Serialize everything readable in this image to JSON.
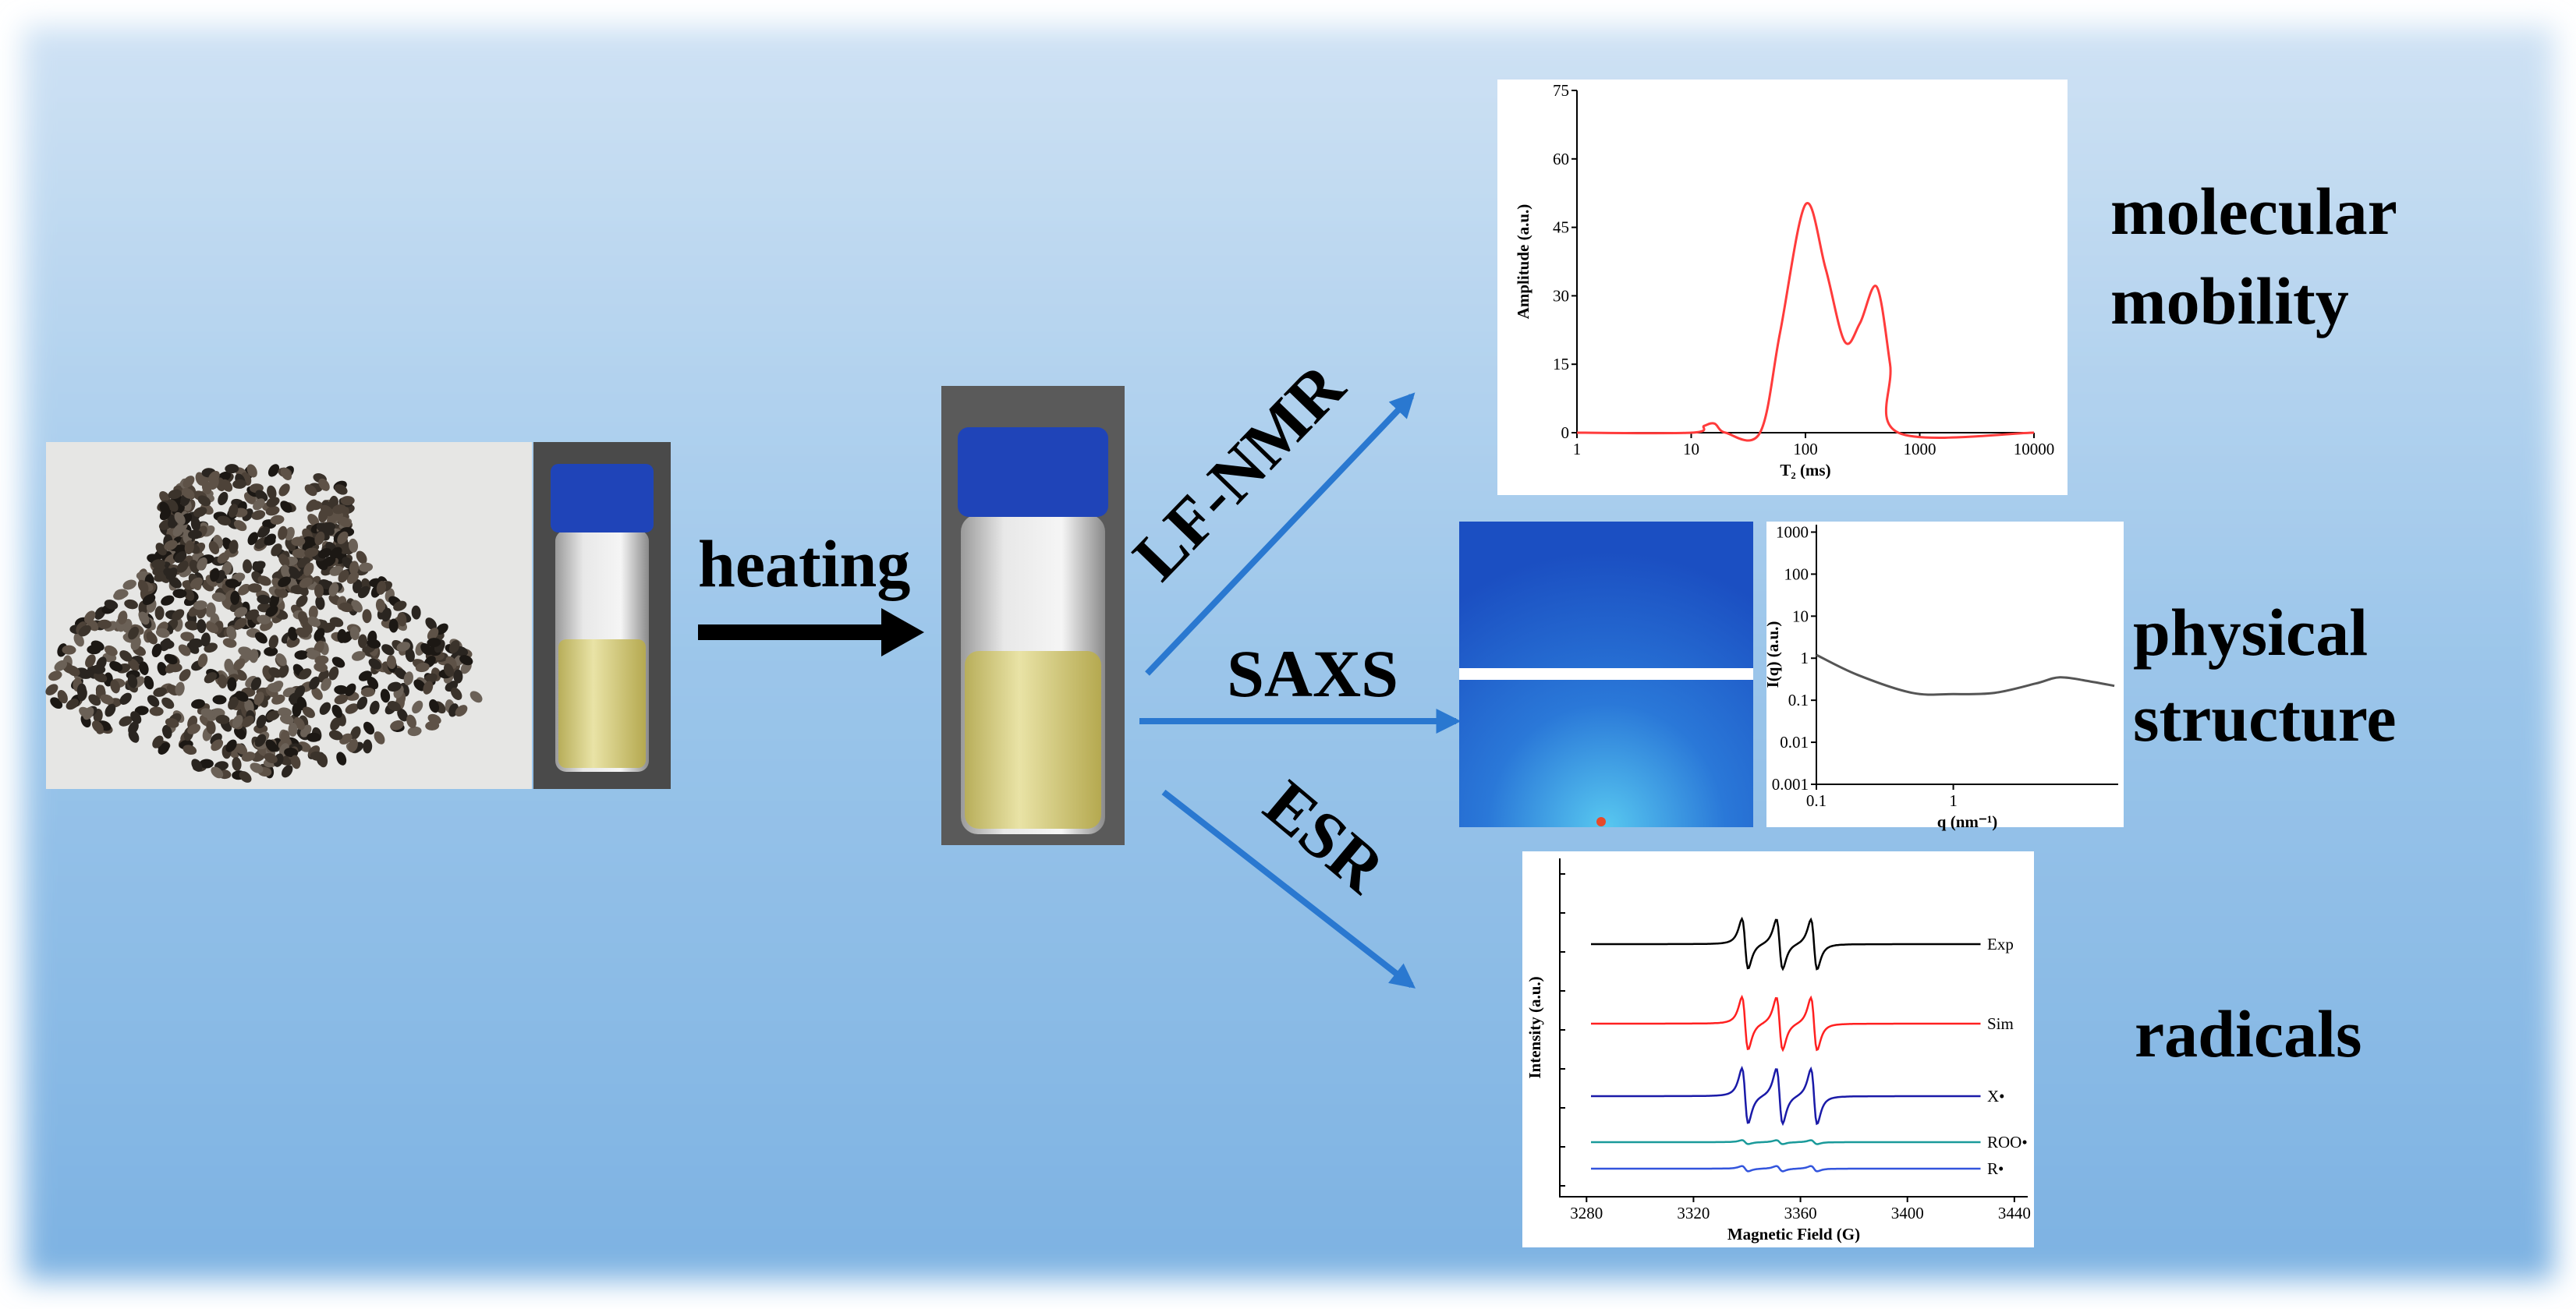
{
  "process": {
    "label": "heating"
  },
  "methods": [
    {
      "label": "LF-NMR"
    },
    {
      "label": "SAXS"
    },
    {
      "label": "ESR"
    }
  ],
  "outcomes": [
    {
      "lines": [
        "molecular",
        "mobility"
      ]
    },
    {
      "lines": [
        "physical",
        "structure"
      ]
    },
    {
      "lines": [
        "radicals"
      ]
    }
  ],
  "charts": {
    "nmr": {
      "type": "line",
      "xlabel": "T₂ (ms)",
      "ylabel": "Amplitude (a.u.)",
      "log_x": true,
      "xlim": [
        1,
        10000
      ],
      "ylim": [
        0,
        75
      ],
      "xticks": [
        1,
        10,
        100,
        1000,
        10000
      ],
      "yticks": [
        0,
        15,
        30,
        45,
        60,
        75
      ],
      "color": "#ff3b3b",
      "x": [
        1,
        10,
        13,
        16,
        20,
        40,
        60,
        100,
        150,
        220,
        300,
        420,
        550,
        650,
        10000
      ],
      "values": [
        0,
        0,
        1.5,
        2,
        0,
        0,
        22,
        50,
        36,
        20,
        24,
        32,
        15,
        0,
        0
      ]
    },
    "saxs": {
      "type": "line",
      "xlabel": "q (nm⁻¹)",
      "ylabel": "I(q) (a.u.)",
      "log_x": true,
      "log_y": true,
      "xlim": [
        0.1,
        16
      ],
      "ylim": [
        0.001,
        1500
      ],
      "xticks": [
        0.1,
        1
      ],
      "yticks": [
        1000,
        100,
        10,
        1,
        0.1,
        0.01,
        0.001
      ],
      "color": "#555555",
      "x": [
        0.1,
        0.2,
        0.5,
        1,
        2,
        4,
        6,
        10,
        15
      ],
      "values": [
        1.2,
        0.4,
        0.15,
        0.14,
        0.15,
        0.25,
        0.35,
        0.28,
        0.22
      ]
    },
    "esr": {
      "type": "line",
      "xlabel": "Magnetic Field (G)",
      "ylabel": "Intensity (a.u.)",
      "xlim": [
        3270,
        3445
      ],
      "xticks": [
        3280,
        3320,
        3360,
        3400,
        3440
      ],
      "series": [
        {
          "name": "Exp",
          "color": "#000000"
        },
        {
          "name": "Sim",
          "color": "#ff2020"
        },
        {
          "name": "X•",
          "color": "#1a1aa8"
        },
        {
          "name": "ROO•",
          "color": "#1a9a9a"
        },
        {
          "name": "R•",
          "color": "#3355dd"
        }
      ]
    }
  }
}
